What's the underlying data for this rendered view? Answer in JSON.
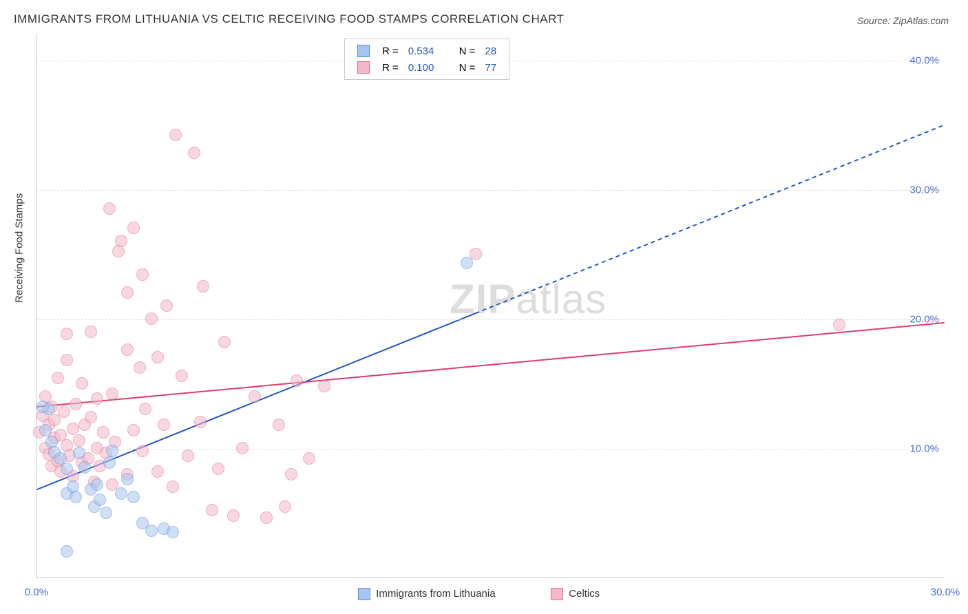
{
  "title": "IMMIGRANTS FROM LITHUANIA VS CELTIC RECEIVING FOOD STAMPS CORRELATION CHART",
  "source": "Source: ZipAtlas.com",
  "watermark_bold": "ZIP",
  "watermark_light": "atlas",
  "chart": {
    "type": "scatter",
    "xlim": [
      0,
      30
    ],
    "ylim": [
      0,
      42
    ],
    "xticks": [
      {
        "v": 0,
        "label": "0.0%"
      },
      {
        "v": 30,
        "label": "30.0%"
      }
    ],
    "yticks": [
      {
        "v": 10,
        "label": "10.0%"
      },
      {
        "v": 20,
        "label": "20.0%"
      },
      {
        "v": 30,
        "label": "30.0%"
      },
      {
        "v": 40,
        "label": "40.0%"
      }
    ],
    "yaxis_label": "Receiving Food Stamps",
    "tick_color": "#4a6fd8",
    "grid_color": "#dddddd",
    "background_color": "#ffffff",
    "plot_border_color": "#cccccc",
    "point_radius": 9,
    "point_opacity": 0.55,
    "series": [
      {
        "key": "lithuania",
        "legend_label": "Immigrants from Lithuania",
        "fill": "#a8c5f0",
        "stroke": "#5b8cd8",
        "R": "0.534",
        "N": "28",
        "trend": {
          "x1": 0,
          "y1": 6.8,
          "x2": 30,
          "y2": 35.0,
          "solid_until_x": 14.5,
          "color": "#2256c5",
          "width": 2
        },
        "points": [
          [
            0.2,
            13.2
          ],
          [
            0.5,
            10.5
          ],
          [
            0.6,
            9.7
          ],
          [
            0.8,
            9.2
          ],
          [
            1.0,
            8.4
          ],
          [
            1.0,
            6.5
          ],
          [
            1.2,
            7.0
          ],
          [
            1.3,
            6.2
          ],
          [
            1.4,
            9.6
          ],
          [
            1.6,
            8.5
          ],
          [
            1.8,
            6.8
          ],
          [
            1.9,
            5.5
          ],
          [
            2.0,
            7.2
          ],
          [
            2.1,
            6.0
          ],
          [
            2.3,
            5.0
          ],
          [
            2.4,
            8.9
          ],
          [
            2.5,
            9.8
          ],
          [
            2.8,
            6.5
          ],
          [
            3.0,
            7.6
          ],
          [
            3.2,
            6.2
          ],
          [
            3.5,
            4.2
          ],
          [
            3.8,
            3.6
          ],
          [
            4.2,
            3.8
          ],
          [
            4.5,
            3.5
          ],
          [
            1.0,
            2.0
          ],
          [
            0.4,
            13.0
          ],
          [
            0.3,
            11.4
          ],
          [
            14.2,
            24.3
          ]
        ]
      },
      {
        "key": "celtics",
        "legend_label": "Celtics",
        "fill": "#f5b8c8",
        "stroke": "#e26b8a",
        "R": "0.100",
        "N": "77",
        "trend": {
          "x1": 0,
          "y1": 13.2,
          "x2": 30,
          "y2": 19.7,
          "solid_until_x": 30,
          "color": "#e03b6a",
          "width": 2
        },
        "points": [
          [
            0.1,
            11.2
          ],
          [
            0.2,
            12.5
          ],
          [
            0.3,
            10.0
          ],
          [
            0.3,
            14.0
          ],
          [
            0.4,
            11.8
          ],
          [
            0.4,
            9.5
          ],
          [
            0.5,
            13.2
          ],
          [
            0.5,
            8.6
          ],
          [
            0.6,
            10.8
          ],
          [
            0.6,
            12.2
          ],
          [
            0.7,
            9.0
          ],
          [
            0.7,
            15.4
          ],
          [
            0.8,
            11.0
          ],
          [
            0.8,
            8.2
          ],
          [
            0.9,
            12.8
          ],
          [
            1.0,
            10.2
          ],
          [
            1.0,
            16.8
          ],
          [
            1.0,
            18.8
          ],
          [
            1.1,
            9.4
          ],
          [
            1.2,
            11.5
          ],
          [
            1.2,
            7.8
          ],
          [
            1.3,
            13.4
          ],
          [
            1.4,
            10.6
          ],
          [
            1.5,
            8.9
          ],
          [
            1.5,
            15.0
          ],
          [
            1.6,
            11.8
          ],
          [
            1.7,
            9.2
          ],
          [
            1.8,
            12.4
          ],
          [
            1.8,
            19.0
          ],
          [
            1.9,
            7.4
          ],
          [
            2.0,
            10.0
          ],
          [
            2.0,
            13.8
          ],
          [
            2.1,
            8.6
          ],
          [
            2.2,
            11.2
          ],
          [
            2.3,
            9.6
          ],
          [
            2.4,
            28.5
          ],
          [
            2.5,
            14.2
          ],
          [
            2.5,
            7.2
          ],
          [
            2.6,
            10.5
          ],
          [
            2.7,
            25.2
          ],
          [
            2.8,
            26.0
          ],
          [
            3.0,
            17.6
          ],
          [
            3.0,
            8.0
          ],
          [
            3.0,
            22.0
          ],
          [
            3.2,
            11.4
          ],
          [
            3.2,
            27.0
          ],
          [
            3.4,
            16.2
          ],
          [
            3.5,
            9.8
          ],
          [
            3.5,
            23.4
          ],
          [
            3.6,
            13.0
          ],
          [
            3.8,
            20.0
          ],
          [
            4.0,
            8.2
          ],
          [
            4.0,
            17.0
          ],
          [
            4.2,
            11.8
          ],
          [
            4.3,
            21.0
          ],
          [
            4.5,
            7.0
          ],
          [
            4.6,
            34.2
          ],
          [
            4.8,
            15.6
          ],
          [
            5.0,
            9.4
          ],
          [
            5.2,
            32.8
          ],
          [
            5.4,
            12.0
          ],
          [
            5.5,
            22.5
          ],
          [
            5.8,
            5.2
          ],
          [
            6.0,
            8.4
          ],
          [
            6.2,
            18.2
          ],
          [
            6.5,
            4.8
          ],
          [
            6.8,
            10.0
          ],
          [
            7.2,
            14.0
          ],
          [
            7.6,
            4.6
          ],
          [
            8.0,
            11.8
          ],
          [
            8.4,
            8.0
          ],
          [
            8.6,
            15.2
          ],
          [
            8.2,
            5.5
          ],
          [
            9.0,
            9.2
          ],
          [
            9.5,
            14.8
          ],
          [
            14.5,
            25.0
          ],
          [
            26.5,
            19.5
          ]
        ]
      }
    ],
    "legend_top": {
      "R_label": "R =",
      "N_label": "N =",
      "value_color": "#2256c5",
      "label_color": "#333333"
    },
    "legend_bottom_items": [
      {
        "series": 0
      },
      {
        "series": 1
      }
    ]
  }
}
